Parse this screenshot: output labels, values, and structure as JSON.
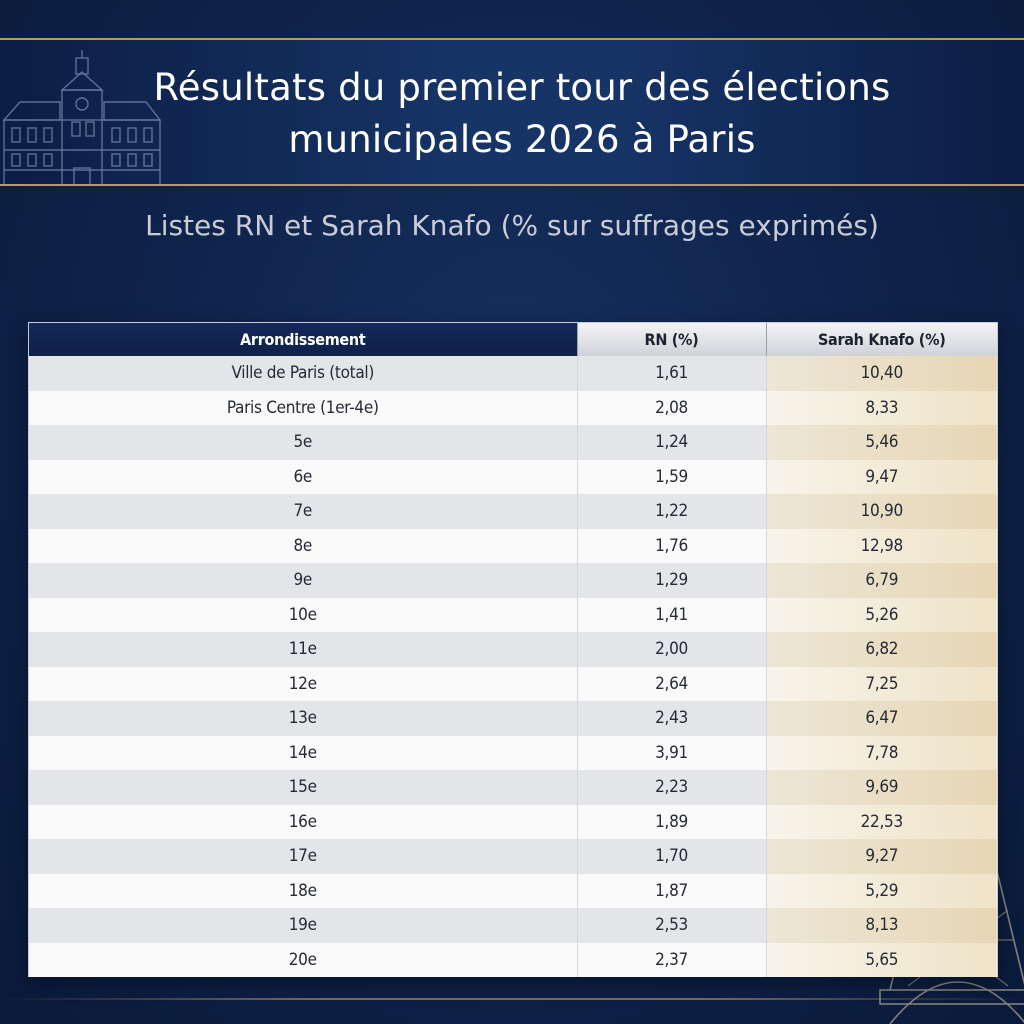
{
  "header": {
    "title_line1": "Résultats du premier tour des élections",
    "title_line2": "municipales 2026 à Paris",
    "subtitle": "Listes RN et Sarah Knafo (% sur suffrages exprimés)"
  },
  "table": {
    "columns": [
      "Arrondissement",
      "RN (%)",
      "Sarah Knafo (%)"
    ],
    "rows": [
      [
        "Ville de Paris (total)",
        "1,61",
        "10,40"
      ],
      [
        "Paris Centre (1er-4e)",
        "2,08",
        "8,33"
      ],
      [
        "5e",
        "1,24",
        "5,46"
      ],
      [
        "6e",
        "1,59",
        "9,47"
      ],
      [
        "7e",
        "1,22",
        "10,90"
      ],
      [
        "8e",
        "1,76",
        "12,98"
      ],
      [
        "9e",
        "1,29",
        "6,79"
      ],
      [
        "10e",
        "1,41",
        "5,26"
      ],
      [
        "11e",
        "2,00",
        "6,82"
      ],
      [
        "12e",
        "2,64",
        "7,25"
      ],
      [
        "13e",
        "2,43",
        "6,47"
      ],
      [
        "14e",
        "3,91",
        "7,78"
      ],
      [
        "15e",
        "2,23",
        "9,69"
      ],
      [
        "16e",
        "1,89",
        "22,53"
      ],
      [
        "17e",
        "1,70",
        "9,27"
      ],
      [
        "18e",
        "1,87",
        "5,29"
      ],
      [
        "19e",
        "2,53",
        "8,13"
      ],
      [
        "20e",
        "2,37",
        "5,65"
      ]
    ]
  },
  "colors": {
    "background": "#0e2249",
    "header_dark": "#14295a",
    "gold_accent": "#b89a5e",
    "knafo_tint": "#e6d6b5"
  },
  "icons": [
    "hotel-de-ville-icon",
    "eiffel-tower-icon"
  ]
}
